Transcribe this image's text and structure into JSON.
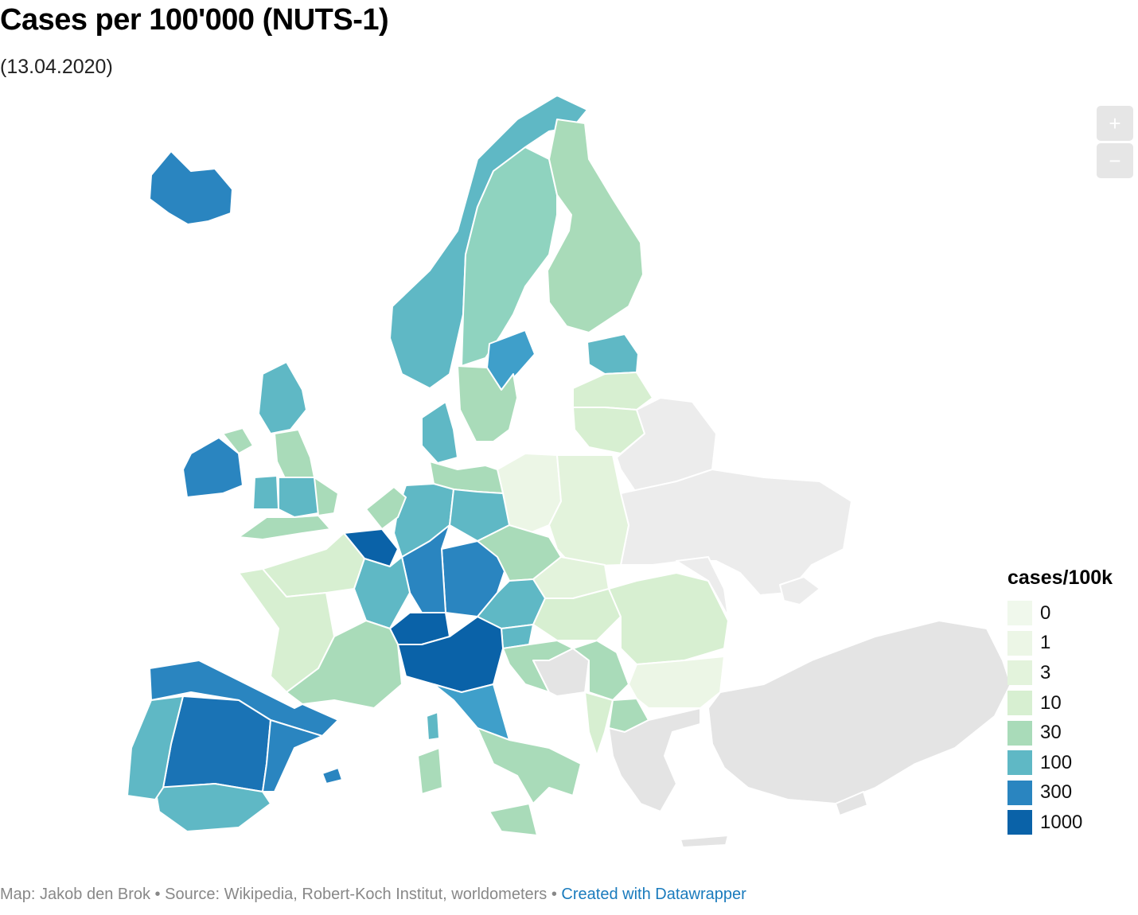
{
  "title": "Cases per 100'000 (NUTS-1)",
  "subtitle": "(13.04.2020)",
  "zoom": {
    "in_label": "+",
    "out_label": "−"
  },
  "legend": {
    "title": "cases/100k",
    "items": [
      {
        "label": "0",
        "color": "#f0f8ec"
      },
      {
        "label": "1",
        "color": "#ecf6e6"
      },
      {
        "label": "3",
        "color": "#e3f3dc"
      },
      {
        "label": "10",
        "color": "#d7efd1"
      },
      {
        "label": "30",
        "color": "#a9dbb9"
      },
      {
        "label": "100",
        "color": "#5fb8c5"
      },
      {
        "label": "300",
        "color": "#2a85c0"
      },
      {
        "label": "1000",
        "color": "#0a62a8"
      }
    ]
  },
  "no_data_color": "#e4e4e4",
  "footer": {
    "text": "Map: Jakob den Brok • Source: Wikipedia, Robert-Koch Institut, worldometers • ",
    "credit": "Created with Datawrapper"
  }
}
